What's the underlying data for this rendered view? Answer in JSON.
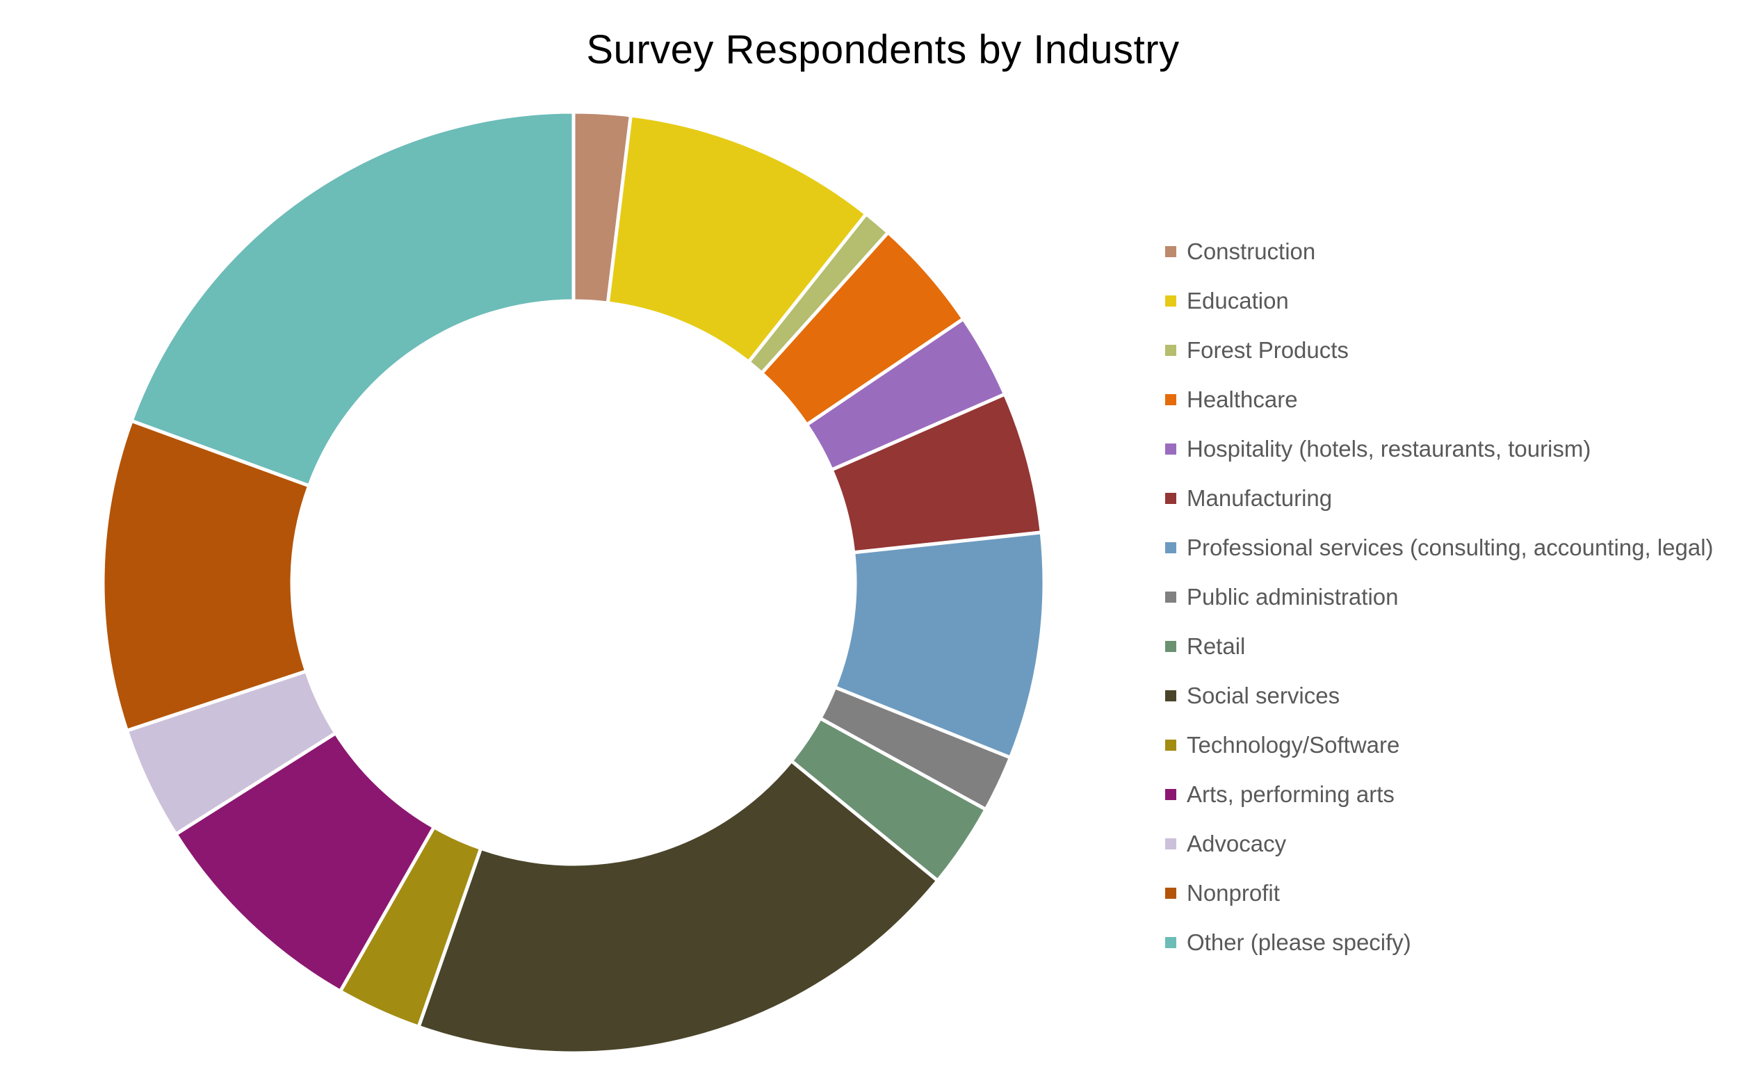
{
  "chart_data": {
    "type": "pie",
    "variant": "donut",
    "title": "Survey Respondents by Industry",
    "legend_position": "right",
    "categories": [
      "Construction",
      "Education",
      "Forest Products",
      "Healthcare",
      "Hospitality (hotels, restaurants, tourism)",
      "Manufacturing",
      "Professional services (consulting, accounting, legal)",
      "Public administration",
      "Retail",
      "Social services",
      "Technology/Software",
      "Arts, performing arts",
      "Advocacy",
      "Nonprofit",
      "Other (please specify)"
    ],
    "values": [
      2,
      9,
      1,
      4,
      3,
      5,
      8,
      2,
      3,
      20,
      3,
      8,
      4,
      11,
      20
    ],
    "colors": [
      "#BD8A6E",
      "#E6CB16",
      "#B5BD6E",
      "#E46C0A",
      "#9A6CBE",
      "#943634",
      "#6D9BC0",
      "#808080",
      "#6B9173",
      "#4A452A",
      "#A38C12",
      "#8B1770",
      "#CCC1DA",
      "#B45408",
      "#6CBCB8"
    ]
  }
}
